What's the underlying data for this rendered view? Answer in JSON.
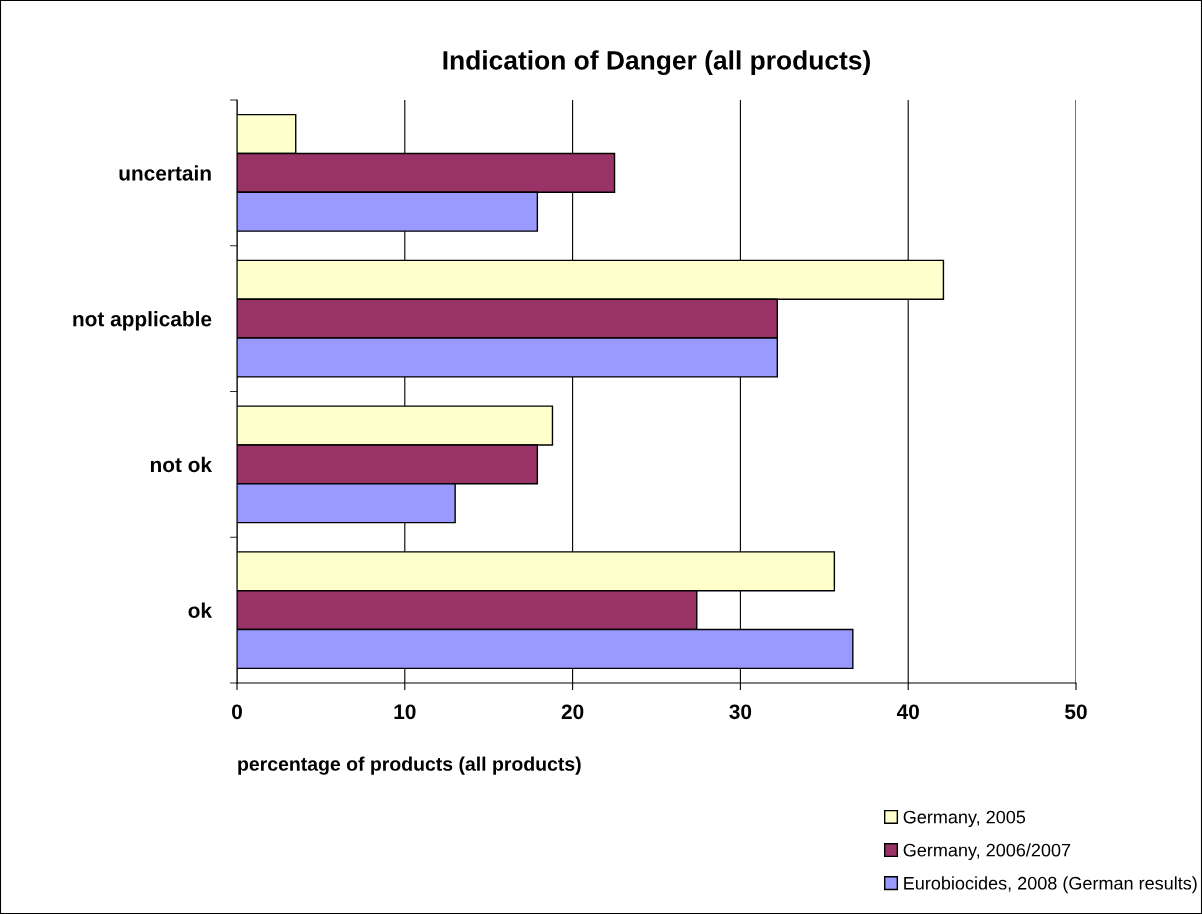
{
  "chart_data": {
    "type": "bar",
    "orientation": "horizontal",
    "title": "Indication of Danger (all products)",
    "xlabel": "percentage of products (all products)",
    "categories": [
      "uncertain",
      "not applicable",
      "not ok",
      "ok"
    ],
    "series": [
      {
        "name": "Germany, 2005",
        "color": "#ffffcc",
        "values": [
          3.5,
          42.1,
          18.8,
          35.6
        ]
      },
      {
        "name": "Germany, 2006/2007",
        "color": "#993366",
        "values": [
          22.5,
          32.2,
          17.9,
          27.4
        ]
      },
      {
        "name": "Eurobiocides, 2008 (German results)",
        "color": "#9999ff",
        "values": [
          17.9,
          32.2,
          13.0,
          36.7
        ]
      }
    ],
    "xlim": [
      0,
      50
    ],
    "xticks": [
      0,
      10,
      20,
      30,
      40,
      50
    ],
    "grid": "x",
    "legend": "bottom right"
  }
}
